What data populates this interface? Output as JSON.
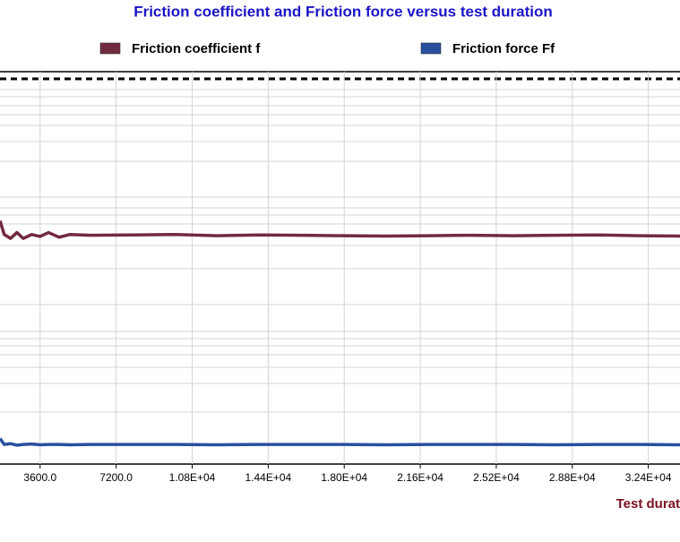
{
  "chart_data": {
    "type": "line",
    "title": "Friction coefficient and Friction force versus test duration",
    "x_label": "Test durat",
    "x": [
      1700,
      1900,
      2200,
      2500,
      2800,
      3200,
      3600,
      4000,
      4500,
      5000,
      6000,
      8000,
      10000,
      12000,
      14000,
      16000,
      18000,
      20000,
      22000,
      24000,
      26000,
      28000,
      30000,
      32000,
      33900
    ],
    "series": [
      {
        "name": "Friction coefficient f",
        "color": "#722a3f",
        "values": [
          0.62,
          0.585,
          0.575,
          0.59,
          0.575,
          0.585,
          0.58,
          0.59,
          0.578,
          0.585,
          0.583,
          0.584,
          0.585,
          0.582,
          0.584,
          0.583,
          0.582,
          0.581,
          0.582,
          0.583,
          0.582,
          0.583,
          0.584,
          0.582,
          0.581
        ]
      },
      {
        "name": "Friction force Ff",
        "color": "#2a4f9f",
        "values": [
          0.065,
          0.05,
          0.052,
          0.048,
          0.05,
          0.051,
          0.049,
          0.05,
          0.05,
          0.049,
          0.05,
          0.05,
          0.05,
          0.049,
          0.05,
          0.05,
          0.05,
          0.049,
          0.05,
          0.05,
          0.05,
          0.049,
          0.05,
          0.05,
          0.049
        ]
      }
    ],
    "xlim": [
      1700,
      33900
    ],
    "ylim": [
      0,
      1
    ],
    "xticks": [
      {
        "value": 3600,
        "label": "3600.0"
      },
      {
        "value": 7200,
        "label": "7200.0"
      },
      {
        "value": 10800,
        "label": "1.08E+04"
      },
      {
        "value": 14400,
        "label": "1.44E+04"
      },
      {
        "value": 18000,
        "label": "1.80E+04"
      },
      {
        "value": 21600,
        "label": "2.16E+04"
      },
      {
        "value": 25200,
        "label": "2.52E+04"
      },
      {
        "value": 28800,
        "label": "2.88E+04"
      },
      {
        "value": 32400,
        "label": "3.24E+04"
      }
    ],
    "grid": true
  }
}
